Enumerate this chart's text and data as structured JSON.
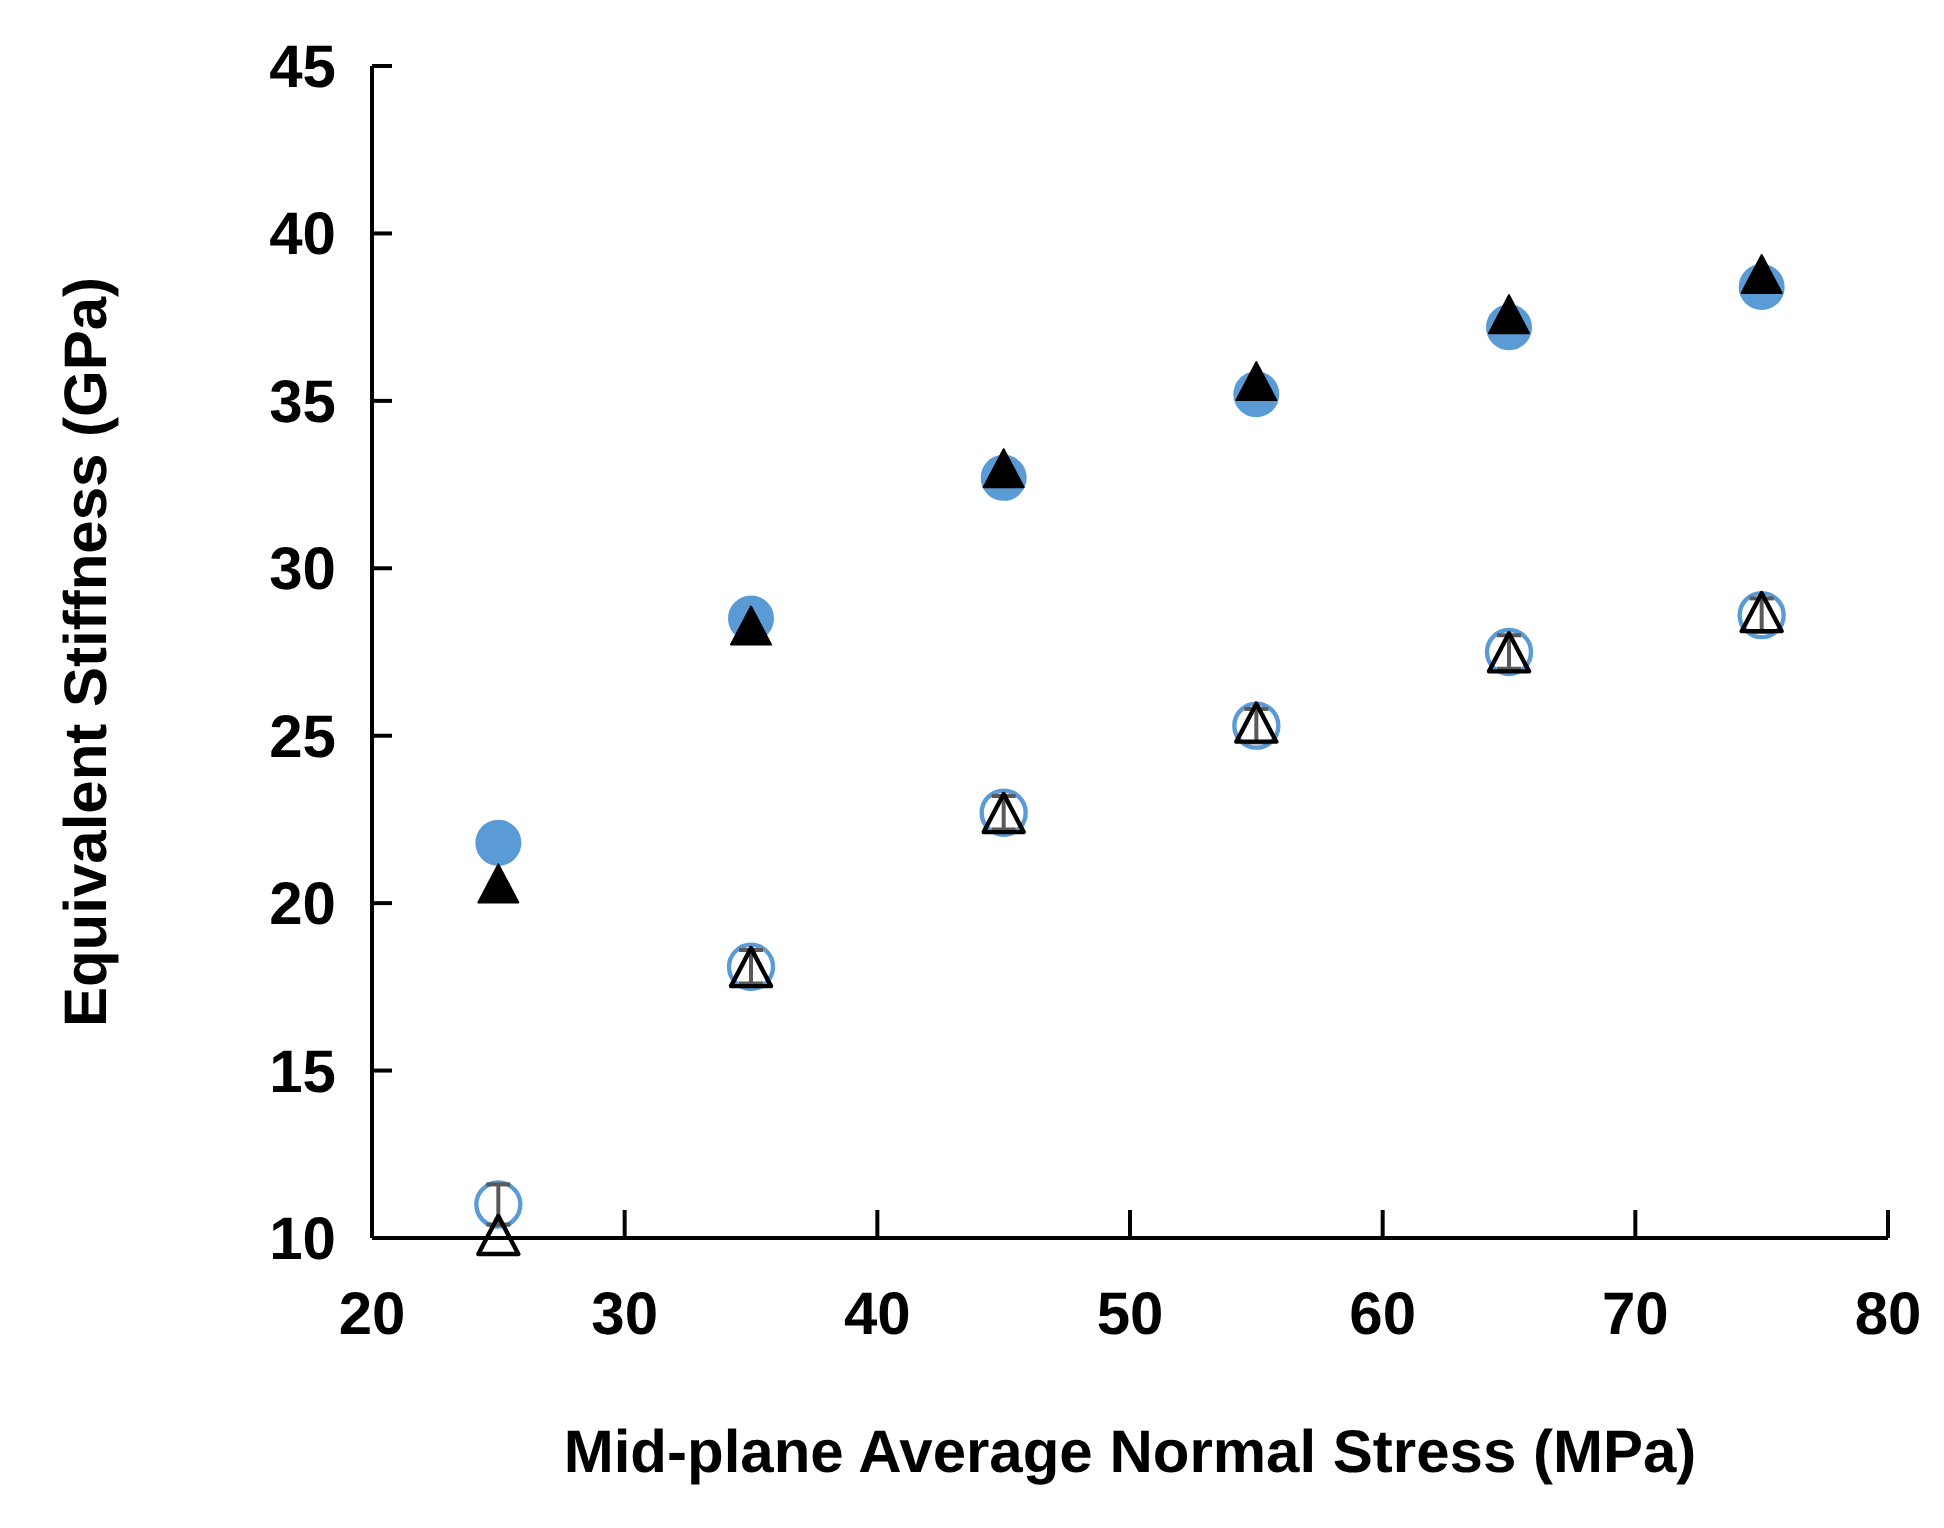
{
  "chart_data": {
    "type": "scatter",
    "xlabel": "Mid-plane Average Normal Stress (MPa)",
    "ylabel": "Equivalent Stiffness (GPa)",
    "x": [
      25,
      35,
      45,
      55,
      65,
      75
    ],
    "xlim": [
      20,
      80
    ],
    "xticks": [
      20,
      30,
      40,
      50,
      60,
      70,
      80
    ],
    "ylim": [
      10,
      45
    ],
    "yticks": [
      10,
      15,
      20,
      25,
      30,
      35,
      40,
      45
    ],
    "series": [
      {
        "color": "#5b9bd5",
        "marker": "circle",
        "values": [
          21.8,
          28.5,
          32.7,
          35.2,
          37.2,
          38.4
        ]
      },
      {
        "color": "#000000",
        "marker": "triangle",
        "values": [
          20.5,
          28.2,
          32.9,
          35.5,
          37.5,
          38.7
        ]
      },
      {
        "color": "#5b9bd5",
        "marker": "circle",
        "values": [
          11.0,
          18.1,
          22.7,
          25.3,
          27.5,
          28.6
        ],
        "errors": [
          0.6,
          0.5,
          0.5,
          0.5,
          0.5,
          0.5
        ]
      },
      {
        "color": "#000000",
        "marker": "triangle",
        "values": [
          10.0,
          18.0,
          22.6,
          25.3,
          27.4,
          28.6
        ]
      }
    ]
  }
}
